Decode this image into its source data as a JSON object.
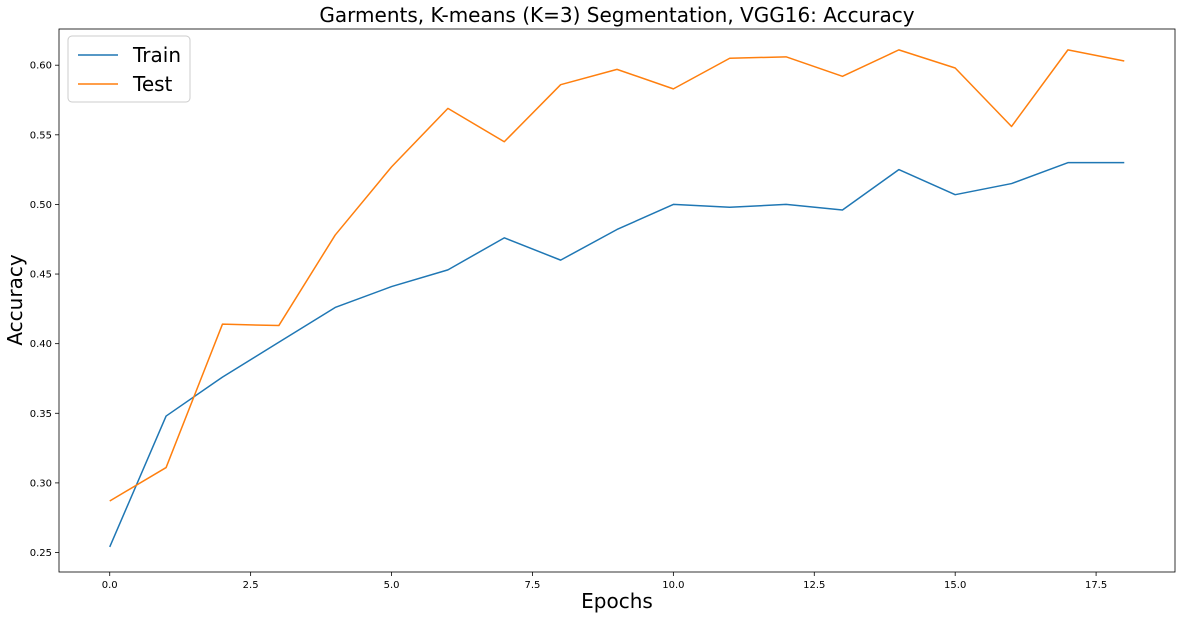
{
  "chart_data": {
    "type": "line",
    "title": "Garments, K-means (K=3) Segmentation, VGG16: Accuracy",
    "xlabel": "Epochs",
    "ylabel": "Accuracy",
    "x": [
      0,
      1,
      2,
      3,
      4,
      5,
      6,
      7,
      8,
      9,
      10,
      11,
      12,
      13,
      14,
      15,
      16,
      17,
      18
    ],
    "series": [
      {
        "name": "Train",
        "color": "#1f77b4",
        "values": [
          0.254,
          0.348,
          0.376,
          0.401,
          0.426,
          0.441,
          0.453,
          0.476,
          0.46,
          0.482,
          0.5,
          0.498,
          0.5,
          0.496,
          0.525,
          0.507,
          0.515,
          0.53,
          0.53
        ]
      },
      {
        "name": "Test",
        "color": "#ff7f0e",
        "values": [
          0.287,
          0.311,
          0.414,
          0.413,
          0.478,
          0.527,
          0.569,
          0.545,
          0.586,
          0.597,
          0.583,
          0.605,
          0.606,
          0.592,
          0.611,
          0.598,
          0.556,
          0.611,
          0.603
        ]
      }
    ],
    "xlim": [
      -0.9,
      18.9
    ],
    "ylim": [
      0.236,
      0.626
    ],
    "xticks": [
      0.0,
      2.5,
      5.0,
      7.5,
      10.0,
      12.5,
      15.0,
      17.5
    ],
    "xtick_labels": [
      "0.0",
      "2.5",
      "5.0",
      "7.5",
      "10.0",
      "12.5",
      "15.0",
      "17.5"
    ],
    "yticks": [
      0.25,
      0.3,
      0.35,
      0.4,
      0.45,
      0.5,
      0.55,
      0.6
    ],
    "ytick_labels": [
      "0.25",
      "0.30",
      "0.35",
      "0.40",
      "0.45",
      "0.50",
      "0.55",
      "0.60"
    ],
    "grid": false,
    "legend_position": "top-left"
  }
}
